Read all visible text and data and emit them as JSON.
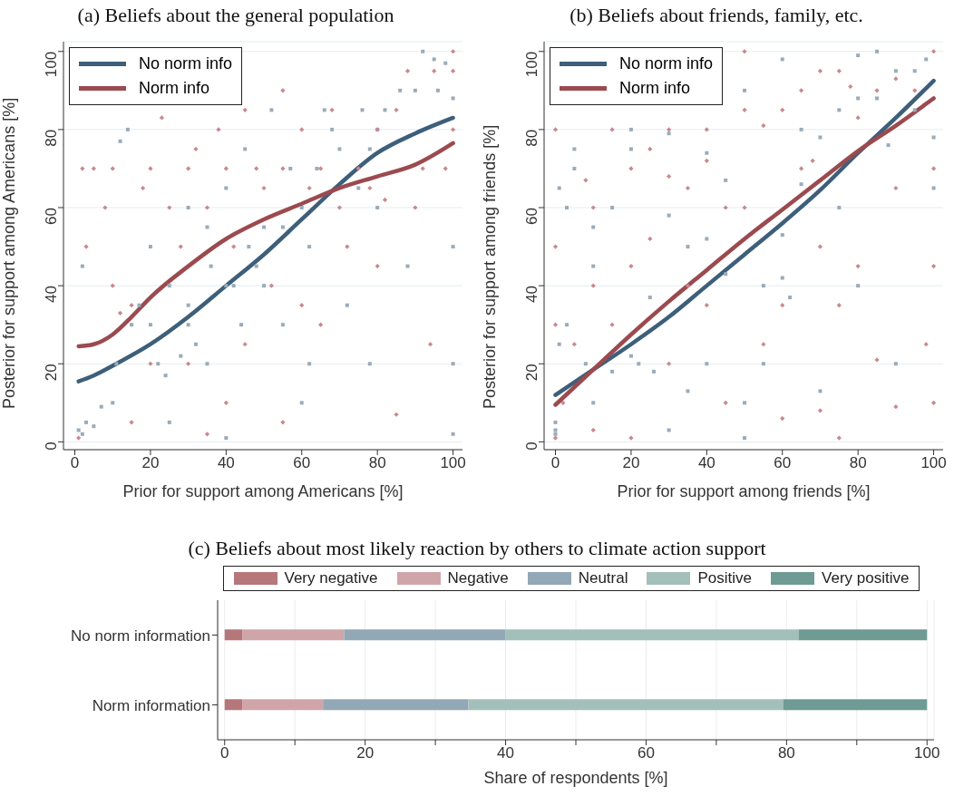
{
  "chart_data": [
    {
      "type": "scatter",
      "title": "(a) Beliefs about the general population",
      "xlabel": "Prior for support among Americans [%]",
      "ylabel": "Posterior for support among Americans [%]",
      "xlim": [
        -3,
        102.5
      ],
      "ylim": [
        -2,
        102.5
      ],
      "xticks": [
        0,
        20,
        40,
        60,
        80,
        100
      ],
      "yticks": [
        0,
        20,
        40,
        60,
        80,
        100
      ],
      "grid": "y",
      "legend": "top left",
      "series": [
        {
          "type": "scatter",
          "color": "#9aabb9",
          "marker": "square",
          "x": [
            1,
            2,
            3,
            5,
            7,
            10,
            2,
            12,
            14,
            11,
            15,
            17,
            20,
            20,
            22,
            24,
            25,
            28,
            30,
            30,
            30,
            32,
            35,
            36,
            40,
            40,
            40,
            42,
            45,
            46,
            48,
            50,
            52,
            55,
            55,
            57,
            60,
            62,
            62,
            64,
            66,
            68,
            70,
            72,
            75,
            76,
            78,
            80,
            80,
            82,
            86,
            88,
            90,
            92,
            95,
            96,
            100,
            100,
            100,
            98,
            100,
            78,
            60,
            50,
            44,
            35,
            25
          ],
          "values": [
            3,
            2,
            5,
            4,
            9,
            10,
            45,
            77,
            80,
            20,
            30,
            35,
            30,
            50,
            20,
            17,
            5,
            22,
            30,
            35,
            60,
            25,
            20,
            45,
            40,
            65,
            1,
            40,
            75,
            50,
            45,
            55,
            85,
            30,
            55,
            70,
            60,
            20,
            50,
            70,
            85,
            80,
            75,
            35,
            65,
            85,
            75,
            80,
            60,
            85,
            90,
            45,
            90,
            100,
            98,
            90,
            2,
            20,
            88,
            97,
            50,
            20,
            10,
            40,
            30,
            55,
            40
          ]
        },
        {
          "type": "scatter",
          "color": "#c9888e",
          "marker": "diamond",
          "x": [
            1,
            2,
            3,
            5,
            8,
            10,
            10,
            12,
            15,
            15,
            18,
            20,
            20,
            23,
            25,
            28,
            30,
            32,
            35,
            35,
            38,
            40,
            40,
            42,
            45,
            48,
            50,
            52,
            55,
            55,
            60,
            60,
            62,
            65,
            68,
            70,
            72,
            75,
            78,
            80,
            80,
            82,
            85,
            88,
            90,
            92,
            94,
            95,
            98,
            100,
            100,
            100,
            55,
            30,
            45,
            65,
            85
          ],
          "values": [
            1,
            70,
            50,
            70,
            60,
            40,
            70,
            33,
            35,
            5,
            65,
            20,
            70,
            83,
            60,
            50,
            70,
            75,
            60,
            2,
            80,
            70,
            10,
            50,
            85,
            70,
            65,
            40,
            90,
            70,
            80,
            35,
            65,
            70,
            85,
            60,
            50,
            70,
            65,
            80,
            45,
            62,
            85,
            95,
            60,
            70,
            25,
            95,
            70,
            100,
            80,
            95,
            5,
            20,
            25,
            30,
            7
          ]
        },
        {
          "type": "line",
          "name": "No norm info",
          "color": "#3d5f7a",
          "x": [
            1,
            5,
            10,
            20,
            30,
            40,
            50,
            60,
            70,
            80,
            90,
            100
          ],
          "values": [
            15.5,
            17,
            19.5,
            25,
            32,
            40,
            48,
            57,
            66,
            74,
            79,
            83
          ]
        },
        {
          "type": "line",
          "name": "Norm info",
          "color": "#9b4a4f",
          "x": [
            1,
            5,
            10,
            15,
            20,
            30,
            40,
            50,
            60,
            70,
            80,
            90,
            100
          ],
          "values": [
            24.5,
            25,
            27.5,
            32,
            37,
            45,
            52,
            57,
            61,
            65,
            68,
            71,
            76.5
          ]
        }
      ]
    },
    {
      "type": "scatter",
      "title": "(b) Beliefs about friends, family, etc.",
      "xlabel": "Prior for support among friends [%]",
      "ylabel": "Posterior for support among friends [%]",
      "xlim": [
        -3,
        102.5
      ],
      "ylim": [
        -2,
        102.5
      ],
      "xticks": [
        0,
        20,
        40,
        60,
        80,
        100
      ],
      "yticks": [
        0,
        20,
        40,
        60,
        80,
        100
      ],
      "grid": "y",
      "legend": "top left",
      "series": [
        {
          "type": "scatter",
          "color": "#9aabb9",
          "marker": "square",
          "x": [
            0,
            0,
            0,
            1,
            1,
            3,
            3,
            5,
            5,
            8,
            10,
            10,
            10,
            15,
            15,
            20,
            20,
            20,
            22,
            25,
            26,
            30,
            30,
            30,
            35,
            35,
            40,
            40,
            40,
            45,
            45,
            50,
            50,
            50,
            55,
            55,
            60,
            60,
            60,
            62,
            65,
            65,
            70,
            70,
            75,
            75,
            80,
            80,
            80,
            85,
            85,
            88,
            90,
            90,
            95,
            98,
            100,
            100,
            95
          ],
          "values": [
            2,
            3,
            5,
            65,
            25,
            60,
            30,
            75,
            70,
            20,
            45,
            55,
            10,
            18,
            60,
            80,
            75,
            22,
            20,
            37,
            18,
            58,
            79,
            3,
            50,
            13,
            74,
            52,
            20,
            67,
            43,
            90,
            10,
            1,
            40,
            20,
            98,
            42,
            53,
            37,
            80,
            66,
            78,
            13,
            85,
            60,
            99,
            88,
            40,
            100,
            88,
            76,
            95,
            20,
            95,
            98,
            65,
            78,
            85
          ]
        },
        {
          "type": "scatter",
          "color": "#c9888e",
          "marker": "diamond",
          "x": [
            0,
            0,
            0,
            0,
            2,
            5,
            8,
            10,
            10,
            10,
            15,
            15,
            20,
            20,
            20,
            25,
            25,
            30,
            30,
            30,
            35,
            35,
            40,
            40,
            40,
            45,
            45,
            50,
            50,
            50,
            55,
            55,
            60,
            60,
            60,
            65,
            65,
            68,
            70,
            70,
            70,
            75,
            75,
            75,
            78,
            80,
            80,
            85,
            85,
            90,
            90,
            90,
            95,
            98,
            100,
            100,
            100,
            100
          ],
          "values": [
            1,
            80,
            50,
            30,
            10,
            25,
            67,
            3,
            40,
            60,
            80,
            30,
            70,
            45,
            1,
            52,
            75,
            80,
            68,
            20,
            65,
            40,
            80,
            35,
            72,
            60,
            10,
            100,
            85,
            60,
            81,
            25,
            85,
            35,
            6,
            90,
            70,
            72,
            95,
            50,
            8,
            95,
            35,
            1,
            91,
            83,
            45,
            90,
            21,
            93,
            65,
            9,
            90,
            25,
            100,
            45,
            10,
            70
          ]
        },
        {
          "type": "line",
          "name": "No norm info",
          "color": "#3d5f7a",
          "x": [
            0,
            10,
            20,
            30,
            40,
            50,
            60,
            70,
            80,
            90,
            100
          ],
          "values": [
            12,
            18.5,
            25,
            32,
            40,
            48,
            56,
            64.5,
            74,
            83,
            92.5
          ]
        },
        {
          "type": "line",
          "name": "Norm info",
          "color": "#9b4a4f",
          "x": [
            0,
            10,
            20,
            30,
            40,
            50,
            60,
            70,
            80,
            90,
            100
          ],
          "values": [
            9.5,
            18.5,
            27.5,
            36,
            44,
            52,
            59.5,
            67,
            74.5,
            81,
            88
          ]
        }
      ]
    },
    {
      "type": "bar",
      "title": "(c) Beliefs about most likely reaction by others to climate action support",
      "xlabel": "Share of respondents [%]",
      "orientation": "horizontal",
      "stacked": true,
      "xlim": [
        -1,
        101
      ],
      "xticks": [
        0,
        {
          "value": 10,
          "label": null
        },
        20,
        {
          "value": 30,
          "label": null
        },
        40,
        {
          "value": 50,
          "label": null
        },
        60,
        {
          "value": 70,
          "label": null
        },
        80,
        {
          "value": 90,
          "label": null
        },
        100
      ],
      "grid": "x",
      "legend": "top",
      "categories": [
        "No norm information",
        "Norm information"
      ],
      "series": [
        {
          "name": "Very negative",
          "color": "#b5777a",
          "values": [
            2.5,
            2.5
          ]
        },
        {
          "name": "Negative",
          "color": "#d0a5a9",
          "values": [
            14.5,
            11.5
          ]
        },
        {
          "name": "Neutral",
          "color": "#93a8b6",
          "values": [
            23,
            20.7
          ]
        },
        {
          "name": "Positive",
          "color": "#a3bfba",
          "values": [
            41.7,
            44.8
          ]
        },
        {
          "name": "Very positive",
          "color": "#6f9b95",
          "values": [
            18.3,
            20.5
          ]
        }
      ]
    }
  ]
}
